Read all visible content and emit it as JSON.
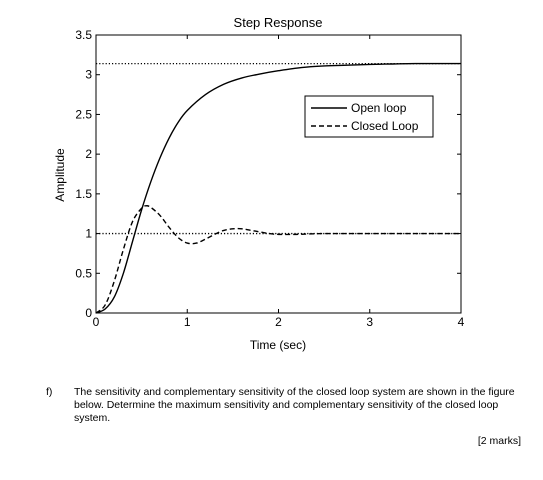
{
  "chart_data": {
    "type": "line",
    "title": "Step Response",
    "xlabel": "Time (sec)",
    "ylabel": "Amplitude",
    "xlim": [
      0,
      4
    ],
    "ylim": [
      0,
      3.5
    ],
    "xticks": [
      "0",
      "1",
      "2",
      "3",
      "4"
    ],
    "yticks": [
      "0",
      "0.5",
      "1",
      "1.5",
      "2",
      "2.5",
      "3",
      "3.5"
    ],
    "grid": false,
    "legend_position": "top-right",
    "series": [
      {
        "name": "Open loop",
        "style": "solid",
        "x": [
          0,
          0.1,
          0.2,
          0.3,
          0.4,
          0.5,
          0.6,
          0.7,
          0.8,
          0.9,
          1.0,
          1.2,
          1.4,
          1.6,
          1.8,
          2.0,
          2.25,
          2.5,
          2.75,
          3.0,
          3.25,
          3.5,
          4.0
        ],
        "y": [
          0,
          0.05,
          0.2,
          0.5,
          0.9,
          1.3,
          1.65,
          1.95,
          2.2,
          2.4,
          2.55,
          2.75,
          2.88,
          2.96,
          3.01,
          3.05,
          3.09,
          3.11,
          3.12,
          3.13,
          3.135,
          3.14,
          3.14
        ]
      },
      {
        "name": "Closed Loop",
        "style": "dashed",
        "x": [
          0,
          0.1,
          0.2,
          0.3,
          0.4,
          0.5,
          0.55,
          0.6,
          0.7,
          0.8,
          0.9,
          1.0,
          1.1,
          1.2,
          1.3,
          1.4,
          1.5,
          1.6,
          1.7,
          1.8,
          1.9,
          2.0,
          2.2,
          2.5,
          3.0,
          3.5,
          4.0
        ],
        "y": [
          0,
          0.1,
          0.4,
          0.8,
          1.15,
          1.32,
          1.35,
          1.33,
          1.23,
          1.08,
          0.95,
          0.88,
          0.88,
          0.93,
          0.99,
          1.04,
          1.06,
          1.06,
          1.04,
          1.02,
          1.0,
          0.99,
          0.99,
          1.0,
          1.0,
          1.0,
          1.0
        ]
      }
    ],
    "reference_lines": [
      {
        "y": 3.14,
        "style": "dotted"
      },
      {
        "y": 1.0,
        "style": "dotted"
      }
    ]
  },
  "question": {
    "letter": "f)",
    "text": "The sensitivity and complementary sensitivity of the closed loop system are shown in the figure below.  Determine the maximum sensitivity and complementary sensitivity of the closed loop system.",
    "marks": "[2 marks]"
  }
}
